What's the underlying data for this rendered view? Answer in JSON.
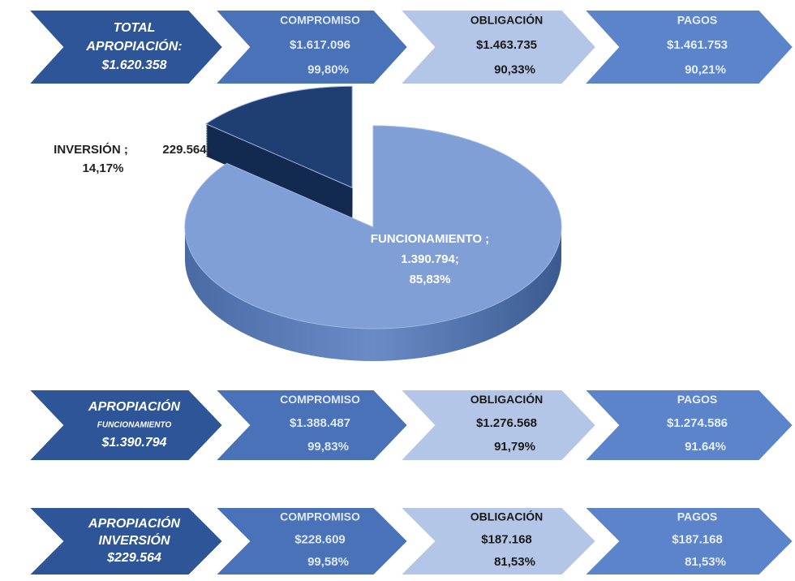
{
  "rows": [
    {
      "lead": [
        "TOTAL",
        "APROPIACIÓN:",
        "$1.620.358"
      ],
      "steps": [
        {
          "label": "COMPROMISO",
          "amount": "$1.617.096",
          "percent": "99,80%"
        },
        {
          "label": "OBLIGACIÓN",
          "amount": "$1.463.735",
          "percent": "90,33%"
        },
        {
          "label": "PAGOS",
          "amount": "$1.461.753",
          "percent": "90,21%"
        }
      ]
    },
    {
      "lead": [
        "APROPIACIÓN",
        "FUNCIONAMIENTO",
        "$1.390.794"
      ],
      "steps": [
        {
          "label": "COMPROMISO",
          "amount": "$1.388.487",
          "percent": "99,83%"
        },
        {
          "label": "OBLIGACIÓN",
          "amount": "$1.276.568",
          "percent": "91,79%"
        },
        {
          "label": "PAGOS",
          "amount": "$1.274.586",
          "percent": "91.64%"
        }
      ]
    },
    {
      "lead": [
        "APROPIACIÓN",
        "INVERSIÓN",
        "$229.564"
      ],
      "steps": [
        {
          "label": "COMPROMISO",
          "amount": "$228.609",
          "percent": "99,58%"
        },
        {
          "label": "OBLIGACIÓN",
          "amount": "$187.168",
          "percent": "81,53%"
        },
        {
          "label": "PAGOS",
          "amount": "$187.168",
          "percent": "81,53%"
        }
      ]
    }
  ],
  "chart_data": {
    "type": "pie",
    "categories": [
      "INVERSIÓN ;",
      "FUNCIONAMIENTO ;"
    ],
    "values": [
      229564,
      1390794
    ],
    "value_labels": [
      "229.564;",
      "1.390.794;"
    ],
    "percent_labels": [
      "14,17%",
      "85,83%"
    ],
    "colors": [
      "#1f3f73",
      "#7f9fd6"
    ]
  }
}
